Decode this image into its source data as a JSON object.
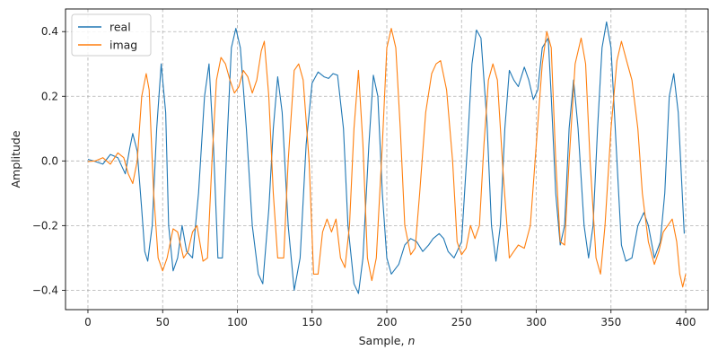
{
  "chart_data": {
    "type": "line",
    "xlabel": "Sample, ",
    "xlabel_var": "n",
    "ylabel": "Amplitude",
    "xlim": [
      -15,
      415
    ],
    "ylim": [
      -0.46,
      0.47
    ],
    "xticks": [
      0,
      50,
      100,
      150,
      200,
      250,
      300,
      350,
      400
    ],
    "yticks": [
      -0.4,
      -0.2,
      0.0,
      0.2,
      0.4
    ],
    "ytick_labels": [
      "−0.4",
      "−0.2",
      "0.0",
      "0.2",
      "0.4"
    ],
    "grid": true,
    "legend_position": "top-left",
    "series": [
      {
        "name": "real",
        "color": "#1f77b4",
        "points": [
          [
            0,
            0.005
          ],
          [
            5,
            -0.002
          ],
          [
            10,
            -0.01
          ],
          [
            15,
            0.02
          ],
          [
            20,
            0.01
          ],
          [
            25,
            -0.04
          ],
          [
            28,
            0.04
          ],
          [
            30,
            0.085
          ],
          [
            33,
            0.03
          ],
          [
            36,
            -0.15
          ],
          [
            38,
            -0.28
          ],
          [
            40,
            -0.31
          ],
          [
            43,
            -0.2
          ],
          [
            46,
            0.1
          ],
          [
            49,
            0.3
          ],
          [
            52,
            0.15
          ],
          [
            54,
            -0.2
          ],
          [
            57,
            -0.34
          ],
          [
            60,
            -0.3
          ],
          [
            63,
            -0.2
          ],
          [
            66,
            -0.28
          ],
          [
            70,
            -0.3
          ],
          [
            74,
            -0.1
          ],
          [
            78,
            0.2
          ],
          [
            81,
            0.3
          ],
          [
            84,
            0.05
          ],
          [
            87,
            -0.3
          ],
          [
            90,
            -0.3
          ],
          [
            93,
            0.05
          ],
          [
            96,
            0.35
          ],
          [
            99,
            0.41
          ],
          [
            102,
            0.35
          ],
          [
            106,
            0.1
          ],
          [
            110,
            -0.2
          ],
          [
            114,
            -0.35
          ],
          [
            117,
            -0.38
          ],
          [
            121,
            -0.15
          ],
          [
            124,
            0.1
          ],
          [
            127,
            0.26
          ],
          [
            130,
            0.15
          ],
          [
            134,
            -0.2
          ],
          [
            138,
            -0.4
          ],
          [
            142,
            -0.3
          ],
          [
            146,
            0.05
          ],
          [
            150,
            0.24
          ],
          [
            154,
            0.275
          ],
          [
            158,
            0.26
          ],
          [
            161,
            0.255
          ],
          [
            164,
            0.27
          ],
          [
            167,
            0.265
          ],
          [
            171,
            0.1
          ],
          [
            174,
            -0.2
          ],
          [
            178,
            -0.38
          ],
          [
            181,
            -0.41
          ],
          [
            184,
            -0.3
          ],
          [
            188,
            0.05
          ],
          [
            191,
            0.265
          ],
          [
            194,
            0.2
          ],
          [
            197,
            -0.1
          ],
          [
            200,
            -0.3
          ],
          [
            203,
            -0.35
          ],
          [
            208,
            -0.32
          ],
          [
            212,
            -0.26
          ],
          [
            216,
            -0.24
          ],
          [
            220,
            -0.25
          ],
          [
            224,
            -0.28
          ],
          [
            228,
            -0.26
          ],
          [
            231,
            -0.24
          ],
          [
            235,
            -0.225
          ],
          [
            238,
            -0.24
          ],
          [
            241,
            -0.28
          ],
          [
            245,
            -0.3
          ],
          [
            250,
            -0.25
          ],
          [
            254,
            0.05
          ],
          [
            257,
            0.3
          ],
          [
            260,
            0.405
          ],
          [
            263,
            0.38
          ],
          [
            267,
            0.12
          ],
          [
            270,
            -0.2
          ],
          [
            273,
            -0.31
          ],
          [
            276,
            -0.2
          ],
          [
            279,
            0.1
          ],
          [
            282,
            0.28
          ],
          [
            285,
            0.25
          ],
          [
            288,
            0.23
          ],
          [
            292,
            0.29
          ],
          [
            295,
            0.25
          ],
          [
            298,
            0.19
          ],
          [
            301,
            0.22
          ],
          [
            304,
            0.35
          ],
          [
            308,
            0.38
          ],
          [
            310,
            0.2
          ],
          [
            313,
            -0.1
          ],
          [
            316,
            -0.26
          ],
          [
            319,
            -0.2
          ],
          [
            322,
            0.1
          ],
          [
            325,
            0.25
          ],
          [
            328,
            0.1
          ],
          [
            332,
            -0.2
          ],
          [
            335,
            -0.3
          ],
          [
            338,
            -0.2
          ],
          [
            341,
            0.1
          ],
          [
            344,
            0.35
          ],
          [
            347,
            0.43
          ],
          [
            350,
            0.35
          ],
          [
            354,
            0.0
          ],
          [
            357,
            -0.26
          ],
          [
            360,
            -0.31
          ],
          [
            364,
            -0.3
          ],
          [
            368,
            -0.2
          ],
          [
            372,
            -0.16
          ],
          [
            375,
            -0.2
          ],
          [
            379,
            -0.3
          ],
          [
            383,
            -0.25
          ],
          [
            386,
            -0.1
          ],
          [
            389,
            0.2
          ],
          [
            392,
            0.27
          ],
          [
            395,
            0.15
          ],
          [
            399,
            -0.225
          ]
        ]
      },
      {
        "name": "imag",
        "color": "#ff7f0e",
        "points": [
          [
            0,
            -0.002
          ],
          [
            5,
            0.0
          ],
          [
            10,
            0.01
          ],
          [
            15,
            -0.01
          ],
          [
            20,
            0.025
          ],
          [
            24,
            0.01
          ],
          [
            27,
            -0.04
          ],
          [
            30,
            -0.07
          ],
          [
            33,
            0.0
          ],
          [
            36,
            0.2
          ],
          [
            39,
            0.27
          ],
          [
            41,
            0.22
          ],
          [
            44,
            -0.1
          ],
          [
            47,
            -0.3
          ],
          [
            50,
            -0.34
          ],
          [
            53,
            -0.3
          ],
          [
            57,
            -0.21
          ],
          [
            60,
            -0.22
          ],
          [
            64,
            -0.3
          ],
          [
            67,
            -0.28
          ],
          [
            70,
            -0.22
          ],
          [
            73,
            -0.2
          ],
          [
            77,
            -0.31
          ],
          [
            80,
            -0.3
          ],
          [
            83,
            0.0
          ],
          [
            86,
            0.25
          ],
          [
            89,
            0.32
          ],
          [
            92,
            0.3
          ],
          [
            95,
            0.25
          ],
          [
            98,
            0.21
          ],
          [
            101,
            0.23
          ],
          [
            104,
            0.28
          ],
          [
            107,
            0.26
          ],
          [
            110,
            0.21
          ],
          [
            113,
            0.25
          ],
          [
            116,
            0.34
          ],
          [
            118,
            0.37
          ],
          [
            121,
            0.2
          ],
          [
            124,
            -0.1
          ],
          [
            127,
            -0.3
          ],
          [
            131,
            -0.3
          ],
          [
            134,
            0.0
          ],
          [
            138,
            0.28
          ],
          [
            141,
            0.3
          ],
          [
            144,
            0.25
          ],
          [
            148,
            0.0
          ],
          [
            151,
            -0.35
          ],
          [
            154,
            -0.35
          ],
          [
            157,
            -0.22
          ],
          [
            160,
            -0.18
          ],
          [
            163,
            -0.22
          ],
          [
            166,
            -0.18
          ],
          [
            169,
            -0.3
          ],
          [
            172,
            -0.33
          ],
          [
            175,
            -0.2
          ],
          [
            178,
            0.1
          ],
          [
            181,
            0.28
          ],
          [
            184,
            0.05
          ],
          [
            187,
            -0.3
          ],
          [
            190,
            -0.37
          ],
          [
            193,
            -0.3
          ],
          [
            197,
            0.05
          ],
          [
            200,
            0.35
          ],
          [
            203,
            0.41
          ],
          [
            206,
            0.35
          ],
          [
            209,
            0.1
          ],
          [
            212,
            -0.2
          ],
          [
            216,
            -0.29
          ],
          [
            219,
            -0.27
          ],
          [
            222,
            -0.1
          ],
          [
            226,
            0.15
          ],
          [
            230,
            0.27
          ],
          [
            233,
            0.3
          ],
          [
            236,
            0.31
          ],
          [
            240,
            0.22
          ],
          [
            244,
            0.0
          ],
          [
            247,
            -0.25
          ],
          [
            250,
            -0.29
          ],
          [
            253,
            -0.27
          ],
          [
            256,
            -0.2
          ],
          [
            259,
            -0.24
          ],
          [
            262,
            -0.2
          ],
          [
            265,
            0.05
          ],
          [
            268,
            0.25
          ],
          [
            271,
            0.3
          ],
          [
            274,
            0.25
          ],
          [
            278,
            -0.05
          ],
          [
            282,
            -0.3
          ],
          [
            285,
            -0.28
          ],
          [
            288,
            -0.26
          ],
          [
            292,
            -0.27
          ],
          [
            296,
            -0.2
          ],
          [
            300,
            0.05
          ],
          [
            304,
            0.3
          ],
          [
            307,
            0.4
          ],
          [
            310,
            0.35
          ],
          [
            313,
            0.0
          ],
          [
            316,
            -0.25
          ],
          [
            319,
            -0.26
          ],
          [
            322,
            0.0
          ],
          [
            326,
            0.3
          ],
          [
            330,
            0.38
          ],
          [
            333,
            0.3
          ],
          [
            336,
            0.0
          ],
          [
            340,
            -0.3
          ],
          [
            343,
            -0.35
          ],
          [
            346,
            -0.2
          ],
          [
            350,
            0.1
          ],
          [
            354,
            0.31
          ],
          [
            357,
            0.37
          ],
          [
            361,
            0.3
          ],
          [
            364,
            0.25
          ],
          [
            368,
            0.1
          ],
          [
            371,
            -0.1
          ],
          [
            375,
            -0.25
          ],
          [
            379,
            -0.32
          ],
          [
            382,
            -0.28
          ],
          [
            385,
            -0.22
          ],
          [
            388,
            -0.2
          ],
          [
            391,
            -0.18
          ],
          [
            394,
            -0.25
          ],
          [
            396,
            -0.35
          ],
          [
            398,
            -0.39
          ],
          [
            400,
            -0.35
          ]
        ]
      }
    ]
  }
}
